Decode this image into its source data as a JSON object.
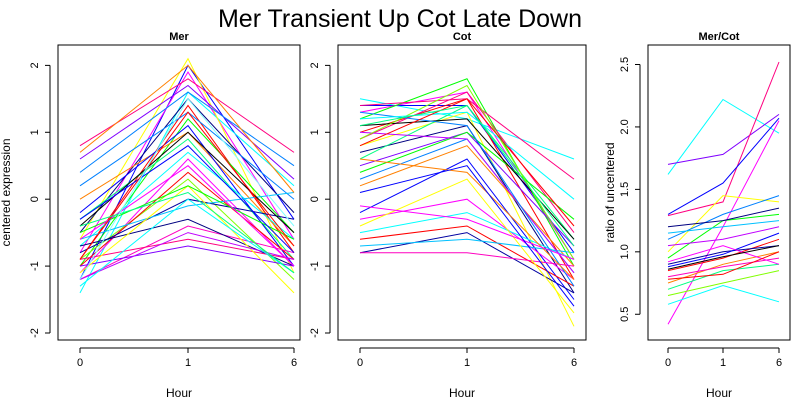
{
  "figure": {
    "title": "Mer Transient Up Cot Late Down"
  },
  "chart_data": [
    {
      "type": "line",
      "title": "Mer",
      "xlabel": "Hour",
      "ylabel": "centered expression",
      "x": [
        "0",
        "1",
        "6"
      ],
      "xticks": [
        "0",
        "1",
        "6"
      ],
      "yticks": [
        -2,
        -1,
        0,
        1,
        2
      ],
      "ylim": [
        -2,
        2.2
      ],
      "series": [
        {
          "color": "#0000ff",
          "values": [
            -1.2,
            2.0,
            -0.3
          ]
        },
        {
          "color": "#ff00ff",
          "values": [
            -0.8,
            1.9,
            -0.6
          ]
        },
        {
          "color": "#00ffff",
          "values": [
            -1.4,
            1.6,
            0.2
          ]
        },
        {
          "color": "#ffff00",
          "values": [
            -0.6,
            2.1,
            -1.1
          ]
        },
        {
          "color": "#ff0000",
          "values": [
            -0.9,
            1.4,
            -0.8
          ]
        },
        {
          "color": "#00ff00",
          "values": [
            -1.0,
            1.2,
            -0.5
          ]
        },
        {
          "color": "#000080",
          "values": [
            -0.5,
            1.5,
            -0.2
          ]
        },
        {
          "color": "#ff0080",
          "values": [
            0.8,
            1.8,
            0.7
          ]
        },
        {
          "color": "#8000ff",
          "values": [
            0.6,
            1.7,
            0.3
          ]
        },
        {
          "color": "#0080ff",
          "values": [
            0.2,
            1.3,
            0.0
          ]
        },
        {
          "color": "#00ff80",
          "values": [
            -0.3,
            0.9,
            -0.9
          ]
        },
        {
          "color": "#ff8000",
          "values": [
            0.0,
            1.0,
            -0.7
          ]
        },
        {
          "color": "#0000ff",
          "values": [
            -0.2,
            1.1,
            -1.0
          ]
        },
        {
          "color": "#ff00ff",
          "values": [
            -1.1,
            0.6,
            -1.0
          ]
        },
        {
          "color": "#00ffff",
          "values": [
            -0.7,
            0.7,
            -0.6
          ]
        },
        {
          "color": "#80ff00",
          "values": [
            -0.9,
            0.3,
            -1.2
          ]
        },
        {
          "color": "#ff0000",
          "values": [
            -1.0,
            0.4,
            -0.9
          ]
        },
        {
          "color": "#0000a0",
          "values": [
            -0.8,
            0.0,
            -0.3
          ]
        },
        {
          "color": "#00c0ff",
          "values": [
            -0.6,
            -0.1,
            0.1
          ]
        },
        {
          "color": "#ff00c0",
          "values": [
            -1.2,
            -0.4,
            -0.8
          ]
        },
        {
          "color": "#000080",
          "values": [
            -0.7,
            -0.3,
            -1.0
          ]
        },
        {
          "color": "#ff0080",
          "values": [
            -0.9,
            -0.6,
            -0.9
          ]
        },
        {
          "color": "#8000ff",
          "values": [
            -1.0,
            -0.7,
            -1.0
          ]
        },
        {
          "color": "#ffff00",
          "values": [
            -1.1,
            0.2,
            -1.4
          ]
        },
        {
          "color": "#00ff00",
          "values": [
            -0.5,
            0.2,
            -0.6
          ]
        },
        {
          "color": "#0080ff",
          "values": [
            0.4,
            1.6,
            0.5
          ]
        },
        {
          "color": "#ff8000",
          "values": [
            0.7,
            2.0,
            0.1
          ]
        },
        {
          "color": "#000000",
          "values": [
            -0.4,
            1.0,
            -0.5
          ]
        },
        {
          "color": "#c000ff",
          "values": [
            -1.2,
            -0.5,
            -0.9
          ]
        },
        {
          "color": "#00ffff",
          "values": [
            -1.3,
            0.0,
            -1.1
          ]
        },
        {
          "color": "#ff00ff",
          "values": [
            -0.6,
            0.5,
            -1.0
          ]
        },
        {
          "color": "#0000ff",
          "values": [
            -0.3,
            0.8,
            -0.8
          ]
        },
        {
          "color": "#ff0000",
          "values": [
            -0.9,
            1.3,
            -0.7
          ]
        },
        {
          "color": "#00ff80",
          "values": [
            -0.4,
            0.1,
            -1.1
          ]
        },
        {
          "color": "#80ffff",
          "values": [
            -1.2,
            1.5,
            -0.4
          ]
        }
      ]
    },
    {
      "type": "line",
      "title": "Cot",
      "xlabel": "Hour",
      "ylabel": "",
      "x": [
        "0",
        "1",
        "6"
      ],
      "xticks": [
        "0",
        "1",
        "6"
      ],
      "yticks": [
        -2,
        -1,
        0,
        1,
        2
      ],
      "ylim": [
        -2,
        2.2
      ],
      "series": [
        {
          "color": "#00ffff",
          "values": [
            1.5,
            1.2,
            0.6
          ]
        },
        {
          "color": "#0000ff",
          "values": [
            1.4,
            1.4,
            -0.8
          ]
        },
        {
          "color": "#ff00ff",
          "values": [
            1.3,
            1.6,
            -0.9
          ]
        },
        {
          "color": "#00ff00",
          "values": [
            1.2,
            1.8,
            -1.0
          ]
        },
        {
          "color": "#ff0000",
          "values": [
            1.0,
            1.5,
            -1.2
          ]
        },
        {
          "color": "#ffff00",
          "values": [
            0.8,
            1.3,
            -1.9
          ]
        },
        {
          "color": "#000080",
          "values": [
            0.7,
            1.1,
            -1.4
          ]
        },
        {
          "color": "#ff0080",
          "values": [
            0.9,
            1.6,
            -0.5
          ]
        },
        {
          "color": "#8000ff",
          "values": [
            0.5,
            1.0,
            -0.7
          ]
        },
        {
          "color": "#0080ff",
          "values": [
            0.3,
            0.9,
            -1.1
          ]
        },
        {
          "color": "#00ff80",
          "values": [
            0.6,
            1.4,
            -0.6
          ]
        },
        {
          "color": "#ff8000",
          "values": [
            0.2,
            0.8,
            -1.0
          ]
        },
        {
          "color": "#0000ff",
          "values": [
            -0.2,
            0.6,
            -1.5
          ]
        },
        {
          "color": "#ff00ff",
          "values": [
            -0.3,
            0.0,
            -1.2
          ]
        },
        {
          "color": "#00ffff",
          "values": [
            -0.5,
            -0.2,
            -0.9
          ]
        },
        {
          "color": "#ff0000",
          "values": [
            -0.6,
            -0.4,
            -1.3
          ]
        },
        {
          "color": "#0000a0",
          "values": [
            -0.8,
            -0.5,
            -1.4
          ]
        },
        {
          "color": "#00c0ff",
          "values": [
            -0.7,
            -0.6,
            -0.8
          ]
        },
        {
          "color": "#ff00c0",
          "values": [
            -0.8,
            -0.8,
            -1.0
          ]
        },
        {
          "color": "#ffff00",
          "values": [
            -0.4,
            0.3,
            -1.7
          ]
        },
        {
          "color": "#00ff00",
          "values": [
            0.4,
            1.0,
            -0.3
          ]
        },
        {
          "color": "#000000",
          "values": [
            1.1,
            1.2,
            -0.6
          ]
        },
        {
          "color": "#c000ff",
          "values": [
            1.0,
            0.9,
            -1.1
          ]
        },
        {
          "color": "#ff0080",
          "values": [
            1.4,
            1.5,
            0.3
          ]
        },
        {
          "color": "#0080ff",
          "values": [
            1.3,
            1.1,
            -1.3
          ]
        },
        {
          "color": "#80ff00",
          "values": [
            0.9,
            1.7,
            -0.9
          ]
        },
        {
          "color": "#ff8000",
          "values": [
            0.6,
            0.4,
            -1.2
          ]
        },
        {
          "color": "#ff00ff",
          "values": [
            -0.1,
            -0.3,
            -0.9
          ]
        },
        {
          "color": "#0000ff",
          "values": [
            0.1,
            0.5,
            -1.6
          ]
        },
        {
          "color": "#00ffff",
          "values": [
            1.2,
            1.3,
            0.0
          ]
        },
        {
          "color": "#ff0000",
          "values": [
            0.8,
            1.5,
            -0.4
          ]
        },
        {
          "color": "#00ff80",
          "values": [
            1.1,
            1.4,
            -0.7
          ]
        }
      ]
    },
    {
      "type": "line",
      "title": "Mer/Cot",
      "xlabel": "Hour",
      "ylabel": "ratio of uncentered",
      "x": [
        "0",
        "1",
        "6"
      ],
      "xticks": [
        "0",
        "1",
        "6"
      ],
      "yticks": [
        0.5,
        1.0,
        1.5,
        2.0,
        2.5
      ],
      "ylim": [
        0.35,
        2.6
      ],
      "series": [
        {
          "color": "#00ffff",
          "values": [
            1.62,
            2.22,
            1.95
          ]
        },
        {
          "color": "#8000ff",
          "values": [
            1.7,
            1.78,
            2.1
          ]
        },
        {
          "color": "#ff0080",
          "values": [
            1.29,
            1.4,
            2.52
          ]
        },
        {
          "color": "#ff00ff",
          "values": [
            0.42,
            1.2,
            2.05
          ]
        },
        {
          "color": "#0000ff",
          "values": [
            1.3,
            1.55,
            2.07
          ]
        },
        {
          "color": "#ffff00",
          "values": [
            1.0,
            1.45,
            1.4
          ]
        },
        {
          "color": "#00ff00",
          "values": [
            0.95,
            1.25,
            1.3
          ]
        },
        {
          "color": "#0080ff",
          "values": [
            1.1,
            1.3,
            1.45
          ]
        },
        {
          "color": "#ff0000",
          "values": [
            0.85,
            0.95,
            1.1
          ]
        },
        {
          "color": "#00ffff",
          "values": [
            0.58,
            0.73,
            0.6
          ]
        },
        {
          "color": "#00ff80",
          "values": [
            0.7,
            0.85,
            0.9
          ]
        },
        {
          "color": "#ff8000",
          "values": [
            0.75,
            0.9,
            1.0
          ]
        },
        {
          "color": "#0000a0",
          "values": [
            0.9,
            1.0,
            1.05
          ]
        },
        {
          "color": "#ff00c0",
          "values": [
            0.8,
            0.88,
            0.95
          ]
        },
        {
          "color": "#c000ff",
          "values": [
            1.05,
            1.1,
            1.2
          ]
        },
        {
          "color": "#80ff00",
          "values": [
            0.65,
            0.75,
            0.85
          ]
        },
        {
          "color": "#0000ff",
          "values": [
            0.88,
            0.98,
            1.15
          ]
        },
        {
          "color": "#ff00ff",
          "values": [
            0.92,
            1.05,
            0.9
          ]
        },
        {
          "color": "#00c0ff",
          "values": [
            1.15,
            1.2,
            1.25
          ]
        },
        {
          "color": "#ff0000",
          "values": [
            0.78,
            0.82,
            1.0
          ]
        },
        {
          "color": "#000080",
          "values": [
            1.2,
            1.25,
            1.35
          ]
        },
        {
          "color": "#000000",
          "values": [
            0.86,
            0.96,
            1.05
          ]
        }
      ]
    }
  ]
}
